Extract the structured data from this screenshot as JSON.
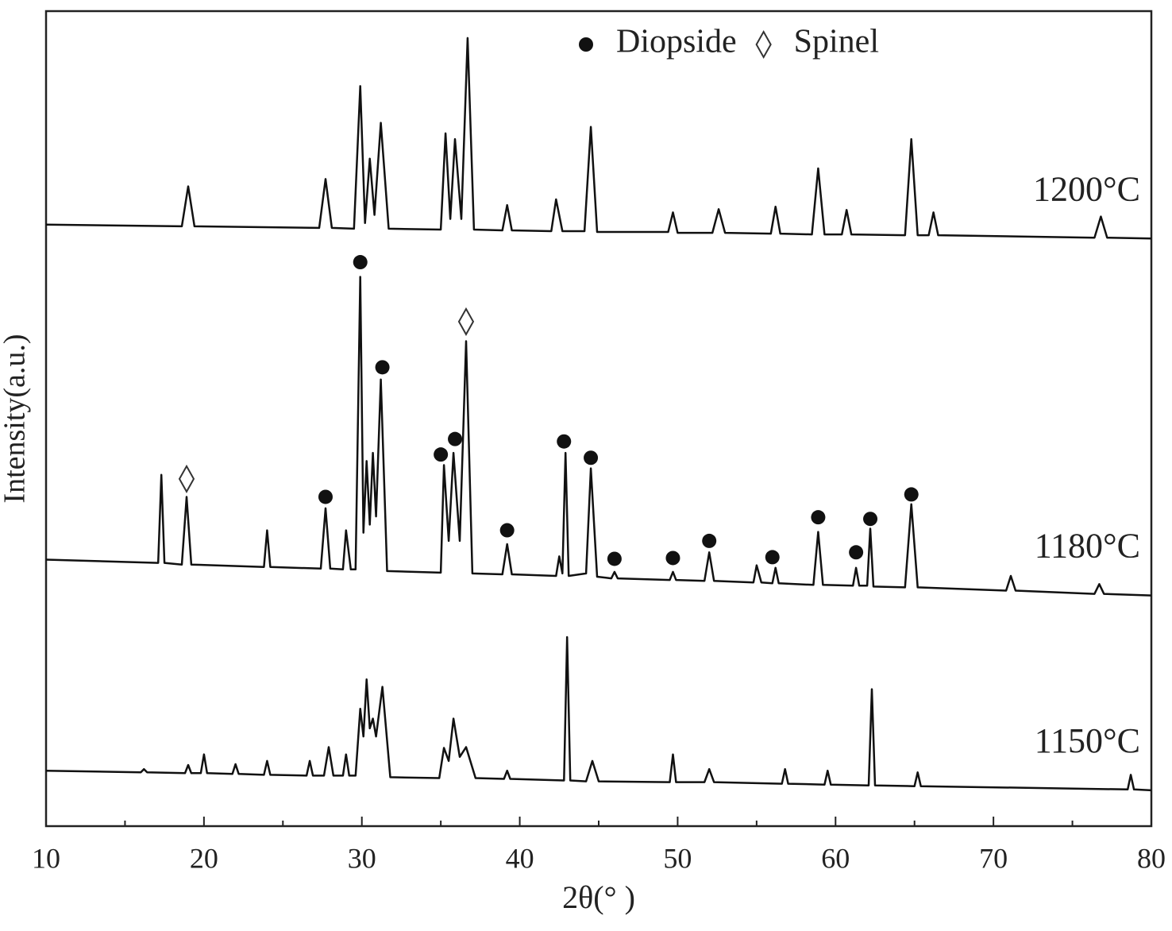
{
  "chart_data": {
    "type": "line",
    "xlabel": "2θ(° )",
    "ylabel": "Intensity(a.u.)",
    "xlim": [
      10,
      80
    ],
    "xticks": [
      10,
      20,
      30,
      40,
      50,
      60,
      70,
      80
    ],
    "xminorticks": [
      15,
      25,
      35,
      45,
      55,
      65,
      75
    ],
    "ylim": [
      0,
      100
    ],
    "color": "#111111",
    "series": [
      {
        "name": "1200°C",
        "x": [
          10,
          18.6,
          19,
          19.4,
          27.3,
          27.7,
          28.1,
          29.5,
          29.9,
          30.2,
          30.5,
          30.8,
          31.2,
          31.7,
          35.0,
          35.3,
          35.6,
          35.9,
          36.3,
          36.7,
          37.1,
          38.9,
          39.2,
          39.5,
          42.0,
          42.3,
          42.7,
          44.1,
          44.5,
          44.9,
          49.4,
          49.7,
          50.0,
          52.2,
          52.6,
          53.0,
          55.9,
          56.2,
          56.5,
          58.5,
          58.9,
          59.3,
          60.4,
          60.7,
          61.0,
          64.4,
          64.8,
          65.2,
          65.9,
          66.2,
          66.5,
          76.4,
          76.8,
          77.2,
          80
        ],
        "values": [
          73.8,
          73.6,
          78.5,
          73.6,
          73.4,
          79.4,
          73.4,
          73.3,
          90.8,
          74.0,
          81.9,
          75.0,
          86.3,
          73.3,
          73.2,
          85.0,
          74.5,
          84.3,
          74.5,
          96.7,
          73.2,
          73.1,
          76.2,
          73.1,
          73.0,
          76.9,
          73.0,
          73.0,
          85.8,
          72.9,
          72.9,
          75.3,
          72.8,
          72.8,
          75.7,
          72.8,
          72.7,
          76.0,
          72.7,
          72.6,
          80.7,
          72.6,
          72.6,
          75.6,
          72.6,
          72.5,
          84.3,
          72.5,
          72.5,
          75.3,
          72.5,
          72.2,
          74.8,
          72.2,
          72.1
        ]
      },
      {
        "name": "1180°C",
        "x": [
          10,
          17.1,
          17.3,
          17.5,
          18.6,
          18.9,
          19.2,
          23.8,
          24,
          24.2,
          27.4,
          27.7,
          28.0,
          28.8,
          29.0,
          29.3,
          29.6,
          29.9,
          30.1,
          30.3,
          30.5,
          30.7,
          30.9,
          31.2,
          31.6,
          35.0,
          35.2,
          35.5,
          35.8,
          36.2,
          36.6,
          37.0,
          38.9,
          39.2,
          39.5,
          42.3,
          42.5,
          42.7,
          42.9,
          43.1,
          44.2,
          44.5,
          44.9,
          45.8,
          46,
          46.2,
          49.5,
          49.7,
          49.9,
          51.7,
          52,
          52.3,
          54.8,
          55,
          55.3,
          56,
          56.2,
          56.4,
          58.6,
          58.9,
          59.2,
          61.1,
          61.3,
          61.5,
          62.0,
          62.2,
          62.4,
          64.4,
          64.8,
          65.2,
          70.8,
          71.1,
          71.4,
          76.4,
          76.7,
          77.0,
          80
        ],
        "values": [
          32.7,
          32.3,
          43.1,
          32.3,
          32.1,
          40.4,
          32.1,
          31.8,
          36.3,
          31.8,
          31.6,
          39.0,
          31.6,
          31.5,
          36.3,
          31.5,
          31.5,
          67.4,
          36.0,
          44.8,
          37.0,
          45.8,
          38.0,
          54.8,
          31.3,
          31.1,
          44.3,
          35.0,
          45.8,
          35.0,
          59.5,
          31.0,
          30.9,
          34.6,
          30.9,
          30.7,
          33.1,
          31.0,
          45.8,
          30.7,
          31.0,
          43.9,
          30.6,
          30.4,
          31.2,
          30.4,
          30.2,
          31.2,
          30.2,
          30.1,
          33.6,
          30.1,
          29.9,
          32.0,
          29.9,
          29.8,
          31.7,
          29.8,
          29.6,
          36.1,
          29.6,
          29.5,
          31.7,
          29.5,
          29.5,
          36.5,
          29.4,
          29.3,
          39.5,
          29.3,
          28.9,
          30.7,
          28.9,
          28.5,
          29.7,
          28.5,
          28.3
        ]
      },
      {
        "name": "1150°C",
        "x": [
          10,
          16.0,
          16.2,
          16.4,
          18.8,
          19,
          19.2,
          19.8,
          20,
          20.2,
          21.8,
          22,
          22.2,
          23.8,
          24,
          24.2,
          26.5,
          26.7,
          26.9,
          27.6,
          27.9,
          28.2,
          28.8,
          29,
          29.2,
          29.6,
          29.9,
          30.1,
          30.3,
          30.5,
          30.7,
          30.9,
          31.3,
          31.8,
          34.9,
          35.2,
          35.5,
          35.8,
          36.2,
          36.6,
          37.2,
          39.0,
          39.2,
          39.4,
          42.8,
          43.0,
          43.2,
          44.2,
          44.6,
          45.0,
          49.5,
          49.7,
          49.9,
          51.7,
          52,
          52.3,
          56.6,
          56.8,
          57.0,
          59.3,
          59.5,
          59.7,
          62.1,
          62.3,
          62.5,
          65.0,
          65.2,
          65.4,
          78.5,
          78.7,
          78.9,
          80
        ],
        "values": [
          6.8,
          6.6,
          7.0,
          6.6,
          6.5,
          7.5,
          6.5,
          6.5,
          8.8,
          6.5,
          6.4,
          7.6,
          6.4,
          6.3,
          8.0,
          6.3,
          6.2,
          8.0,
          6.2,
          6.2,
          9.7,
          6.2,
          6.2,
          8.8,
          6.2,
          6.2,
          14.4,
          11.0,
          18.0,
          12.0,
          13.2,
          11.0,
          17.1,
          6.0,
          5.9,
          9.6,
          8.0,
          13.2,
          8.5,
          9.7,
          5.9,
          5.8,
          6.8,
          5.8,
          5.6,
          23.2,
          5.6,
          5.5,
          8.0,
          5.5,
          5.4,
          8.8,
          5.4,
          5.4,
          7.0,
          5.4,
          5.2,
          7.0,
          5.2,
          5.1,
          6.8,
          5.1,
          5.0,
          16.8,
          5.0,
          4.9,
          6.6,
          4.9,
          4.5,
          6.3,
          4.5,
          4.4
        ]
      }
    ],
    "annotations": [
      {
        "name": "Diopside",
        "symbol": "circle",
        "x": [
          29.9,
          31.3,
          27.7,
          35.0,
          35.9,
          39.2,
          42.8,
          44.5,
          46.0,
          49.7,
          52.0,
          56.0,
          58.9,
          61.3,
          62.2,
          64.8
        ],
        "y": [
          69.2,
          56.3,
          40.4,
          45.6,
          47.5,
          36.3,
          47.2,
          45.2,
          32.8,
          32.9,
          35.0,
          33.0,
          37.9,
          33.6,
          37.7,
          40.7
        ]
      },
      {
        "name": "Spinel",
        "symbol": "diamond",
        "x": [
          18.9,
          36.6
        ],
        "y": [
          42.6,
          61.9
        ]
      }
    ]
  }
}
